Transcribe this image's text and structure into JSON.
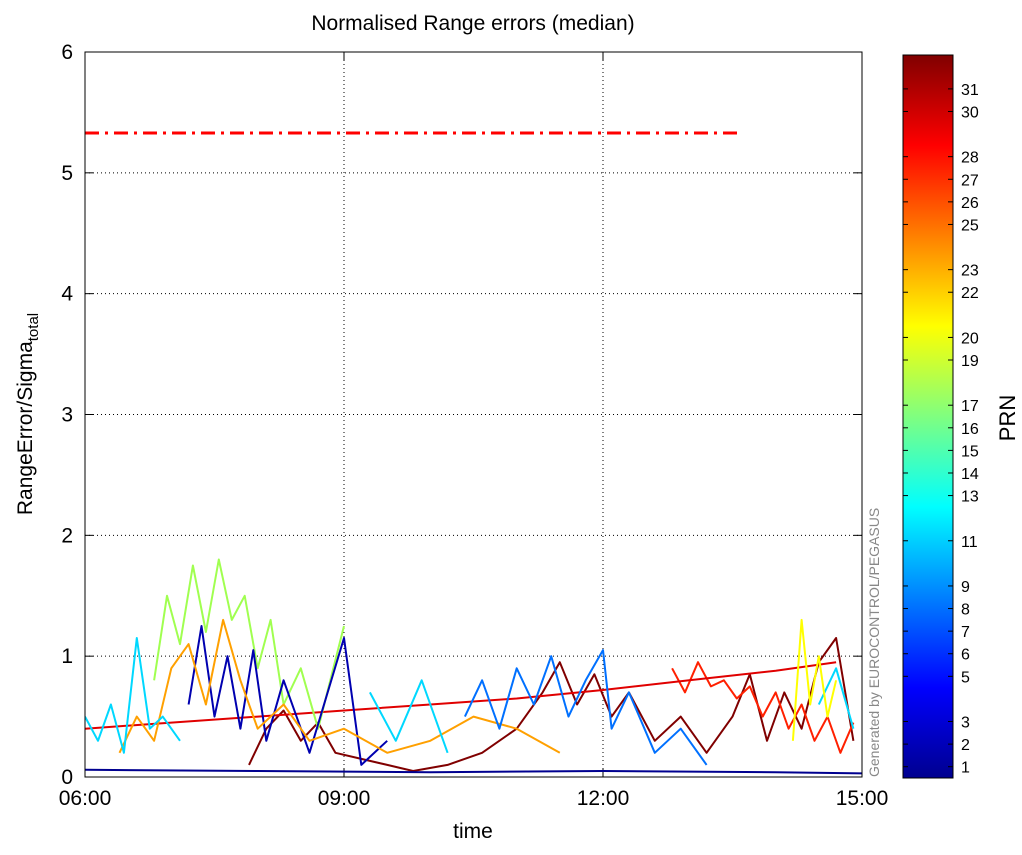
{
  "chart_data": {
    "type": "line",
    "title": "Normalised Range errors (median)",
    "xlabel": "time",
    "ylabel": "RangeError/Sigma",
    "ylabel_subscript": "total",
    "watermark": "Generated by EUROCONTROL/PEGASUS",
    "xlim": [
      6,
      15
    ],
    "xticks": [
      {
        "value": 6,
        "label": "06:00"
      },
      {
        "value": 9,
        "label": "09:00"
      },
      {
        "value": 12,
        "label": "12:00"
      },
      {
        "value": 15,
        "label": "15:00"
      }
    ],
    "ylim": [
      0,
      6
    ],
    "yticks": [
      0,
      1,
      2,
      3,
      4,
      5,
      6
    ],
    "grid": true,
    "threshold": {
      "x": [
        6,
        13.58
      ],
      "y": 5.33,
      "color": "#ff0000",
      "style": "dash-dot"
    },
    "series": [
      {
        "color": "#800000",
        "x": [
          7.9,
          8.1,
          8.3,
          8.5,
          8.7,
          8.9,
          9.2,
          9.5,
          9.8,
          10.2,
          10.6,
          11.0,
          11.3,
          11.5,
          11.7,
          11.9,
          12.1,
          12.3,
          12.6,
          12.9,
          13.2,
          13.5,
          13.7,
          13.9,
          14.1,
          14.3,
          14.5,
          14.7,
          14.9
        ],
        "values": [
          0.1,
          0.4,
          0.55,
          0.3,
          0.45,
          0.2,
          0.15,
          0.1,
          0.05,
          0.1,
          0.2,
          0.4,
          0.7,
          0.95,
          0.6,
          0.85,
          0.5,
          0.7,
          0.3,
          0.5,
          0.2,
          0.5,
          0.85,
          0.3,
          0.7,
          0.4,
          0.95,
          1.15,
          0.3
        ]
      },
      {
        "color": "#ff2000",
        "x": [
          12.8,
          12.95,
          13.1,
          13.25,
          13.4,
          13.55,
          13.7,
          13.85,
          14.0,
          14.15,
          14.3,
          14.45,
          14.6,
          14.75,
          14.9
        ],
        "values": [
          0.9,
          0.7,
          0.95,
          0.75,
          0.8,
          0.65,
          0.75,
          0.5,
          0.7,
          0.4,
          0.6,
          0.3,
          0.5,
          0.2,
          0.45
        ]
      },
      {
        "color": "#e00000",
        "x": [
          6,
          7,
          8,
          9,
          10,
          11,
          12,
          13,
          14,
          14.7
        ],
        "values": [
          0.4,
          0.45,
          0.5,
          0.55,
          0.6,
          0.65,
          0.72,
          0.8,
          0.88,
          0.95
        ]
      },
      {
        "color": "#a0ff50",
        "x": [
          6.8,
          6.95,
          7.1,
          7.25,
          7.4,
          7.55,
          7.7,
          7.85,
          8.0,
          8.15,
          8.3,
          8.5,
          8.7,
          9.0
        ],
        "values": [
          0.8,
          1.5,
          1.1,
          1.75,
          1.2,
          1.8,
          1.3,
          1.5,
          0.9,
          1.3,
          0.6,
          0.9,
          0.4,
          1.25
        ]
      },
      {
        "color": "#0000b0",
        "x": [
          7.2,
          7.35,
          7.5,
          7.65,
          7.8,
          7.95,
          8.1,
          8.3,
          8.6,
          9.0,
          9.2,
          9.5
        ],
        "values": [
          0.6,
          1.25,
          0.5,
          1.0,
          0.4,
          1.05,
          0.3,
          0.8,
          0.2,
          1.15,
          0.1,
          0.3
        ]
      },
      {
        "color": "#ffa000",
        "x": [
          6.4,
          6.6,
          6.8,
          7.0,
          7.2,
          7.4,
          7.6,
          7.8,
          8.0,
          8.3,
          8.6,
          9.0,
          9.5,
          10.0,
          10.5,
          11.0,
          11.5
        ],
        "values": [
          0.2,
          0.5,
          0.3,
          0.9,
          1.1,
          0.6,
          1.3,
          0.8,
          0.4,
          0.6,
          0.3,
          0.4,
          0.2,
          0.3,
          0.5,
          0.4,
          0.2
        ]
      },
      {
        "color": "#0070ff",
        "x": [
          10.4,
          10.6,
          10.8,
          11.0,
          11.2,
          11.4,
          11.6,
          11.8,
          12.0,
          12.1,
          12.3,
          12.6,
          12.9,
          13.2
        ],
        "values": [
          0.5,
          0.8,
          0.4,
          0.9,
          0.6,
          1.0,
          0.5,
          0.8,
          1.05,
          0.4,
          0.7,
          0.2,
          0.4,
          0.1
        ]
      },
      {
        "color": "#00d8ff",
        "x": [
          6.0,
          6.15,
          6.3,
          6.45,
          6.6,
          6.75,
          6.9,
          7.1,
          8.0,
          9.3,
          9.6,
          9.9,
          10.2,
          14.3,
          14.5,
          14.7,
          14.9
        ],
        "values": [
          0.5,
          0.3,
          0.6,
          0.2,
          1.15,
          0.4,
          0.5,
          0.3,
          null,
          0.7,
          0.3,
          0.8,
          0.2,
          null,
          0.6,
          0.9,
          0.4
        ]
      },
      {
        "color": "#ffff00",
        "x": [
          14.2,
          14.3,
          14.4,
          14.5,
          14.6,
          14.7
        ],
        "values": [
          0.3,
          1.3,
          0.6,
          1.0,
          0.5,
          0.8
        ]
      },
      {
        "color": "#000090",
        "x": [
          6,
          8,
          10,
          12,
          14,
          15
        ],
        "values": [
          0.06,
          0.05,
          0.04,
          0.05,
          0.04,
          0.03
        ]
      }
    ],
    "colorbar": {
      "label": "PRN",
      "clim": [
        0.5,
        32.5
      ],
      "ticks": [
        1,
        2,
        3,
        5,
        6,
        7,
        8,
        9,
        11,
        13,
        14,
        15,
        16,
        17,
        19,
        20,
        22,
        23,
        25,
        26,
        27,
        28,
        30,
        31
      ],
      "colormap": [
        {
          "offset": 0,
          "color": "#00008f"
        },
        {
          "offset": 0.125,
          "color": "#0000ff"
        },
        {
          "offset": 0.375,
          "color": "#00ffff"
        },
        {
          "offset": 0.625,
          "color": "#ffff00"
        },
        {
          "offset": 0.875,
          "color": "#ff0000"
        },
        {
          "offset": 1,
          "color": "#800000"
        }
      ]
    }
  }
}
